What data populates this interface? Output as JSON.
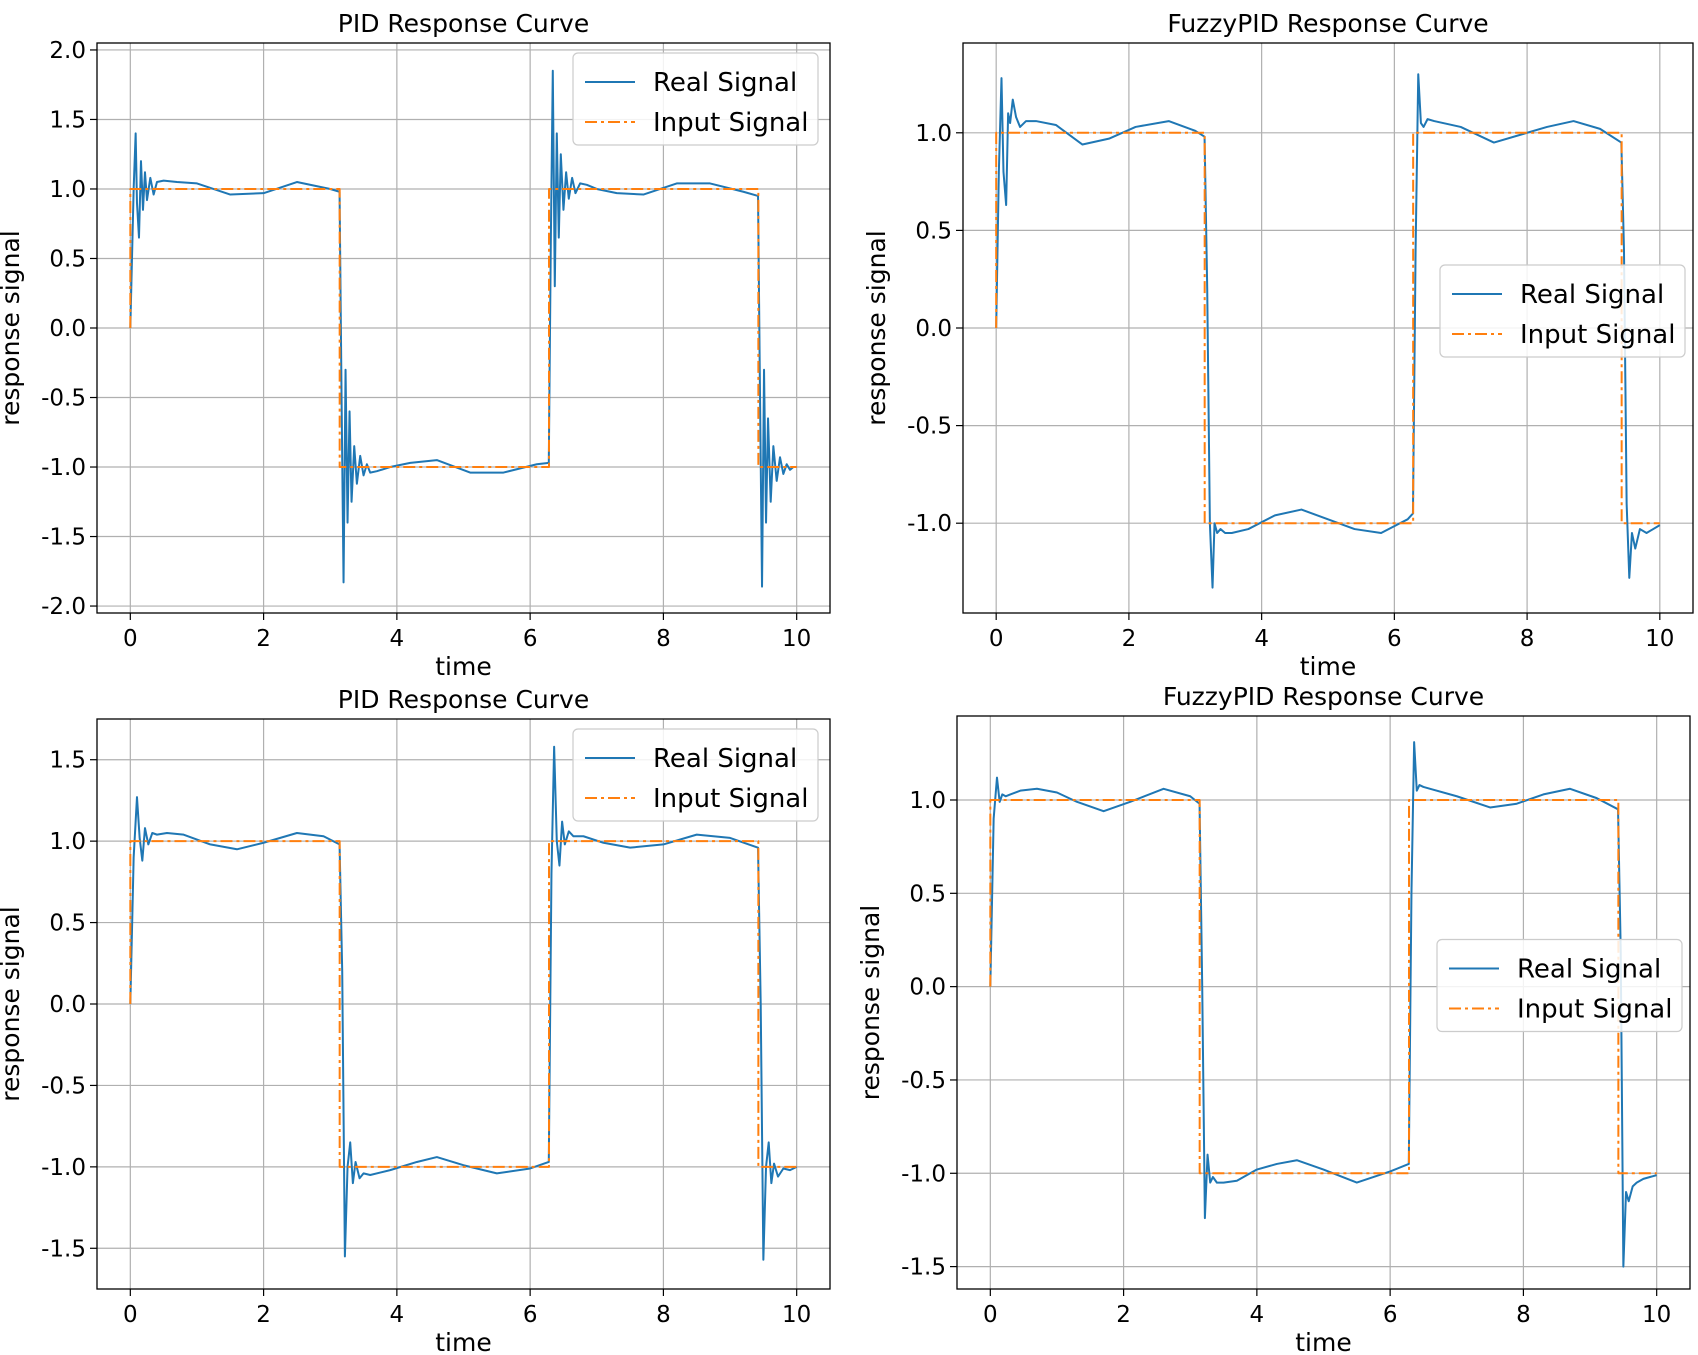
{
  "figure": {
    "background": "#ffffff",
    "grid_color": "#b0b0b0"
  },
  "colors": {
    "real": "#1f77b4",
    "input": "#ff7f0e",
    "axes": "#000000"
  },
  "chart_data": [
    {
      "type": "line",
      "title": "PID Response Curve",
      "xlabel": "time",
      "ylabel": "response signal",
      "xlim": [
        -0.5,
        10.5
      ],
      "ylim": [
        -2.05,
        2.05
      ],
      "xticks": [
        0,
        2,
        4,
        6,
        8,
        10
      ],
      "xtick_labels": [
        "0",
        "2",
        "4",
        "6",
        "8",
        "10"
      ],
      "yticks": [
        2.0,
        1.5,
        1.0,
        0.5,
        0.0,
        -0.5,
        -1.0,
        -1.5,
        -2.0
      ],
      "ytick_labels": [
        "2.0",
        "1.5",
        "1.0",
        "0.5",
        "0.0",
        "-0.5",
        "-1.0",
        "-1.5",
        "-2.0"
      ],
      "grid": true,
      "legend_position": "top-right",
      "legend": [
        "Real Signal",
        "Input Signal"
      ],
      "series": [
        {
          "name": "Real Signal",
          "style": "solid",
          "x": [
            0,
            0.05,
            0.08,
            0.1,
            0.13,
            0.16,
            0.19,
            0.22,
            0.25,
            0.3,
            0.35,
            0.4,
            0.5,
            0.7,
            1.0,
            1.5,
            2.0,
            2.5,
            3.0,
            3.14,
            3.17,
            3.2,
            3.23,
            3.26,
            3.29,
            3.32,
            3.36,
            3.4,
            3.45,
            3.5,
            3.55,
            3.6,
            3.7,
            3.9,
            4.2,
            4.6,
            5.1,
            5.6,
            6.1,
            6.28,
            6.31,
            6.34,
            6.37,
            6.4,
            6.43,
            6.46,
            6.5,
            6.54,
            6.58,
            6.63,
            6.68,
            6.75,
            6.85,
            7.0,
            7.3,
            7.7,
            8.2,
            8.7,
            9.2,
            9.42,
            9.45,
            9.48,
            9.51,
            9.54,
            9.57,
            9.61,
            9.65,
            9.7,
            9.75,
            9.8,
            9.85,
            9.9,
            9.95,
            10.0
          ],
          "y": [
            0.0,
            1.0,
            1.4,
            0.9,
            0.65,
            1.2,
            0.85,
            1.12,
            0.92,
            1.08,
            0.96,
            1.05,
            1.06,
            1.05,
            1.04,
            0.96,
            0.97,
            1.05,
            1.0,
            0.98,
            -0.5,
            -1.83,
            -0.3,
            -1.4,
            -0.6,
            -1.25,
            -0.85,
            -1.12,
            -0.92,
            -1.06,
            -0.98,
            -1.04,
            -1.03,
            -1.0,
            -0.97,
            -0.95,
            -1.04,
            -1.04,
            -0.98,
            -0.97,
            0.6,
            1.85,
            0.3,
            1.4,
            0.65,
            1.25,
            0.85,
            1.12,
            0.93,
            1.08,
            0.97,
            1.04,
            1.03,
            1.0,
            0.97,
            0.96,
            1.04,
            1.04,
            0.98,
            0.95,
            -0.5,
            -1.86,
            -0.3,
            -1.4,
            -0.65,
            -1.25,
            -0.85,
            -1.1,
            -0.93,
            -1.05,
            -0.98,
            -1.02,
            -1.0,
            -1.0
          ]
        },
        {
          "name": "Input Signal",
          "style": "dashdot",
          "x": [
            0,
            0.0001,
            3.1416,
            3.1417,
            6.2832,
            6.2833,
            9.4248,
            9.4249,
            10.0
          ],
          "y": [
            0,
            1,
            1,
            -1,
            -1,
            1,
            1,
            -1,
            -1
          ]
        }
      ]
    },
    {
      "type": "line",
      "title": "FuzzyPID Response Curve",
      "xlabel": "time",
      "ylabel": "response signal",
      "xlim": [
        -0.5,
        10.5
      ],
      "ylim": [
        -1.46,
        1.46
      ],
      "xticks": [
        0,
        2,
        4,
        6,
        8,
        10
      ],
      "xtick_labels": [
        "0",
        "2",
        "4",
        "6",
        "8",
        "10"
      ],
      "yticks": [
        1.0,
        0.5,
        0.0,
        -0.5,
        -1.0
      ],
      "ytick_labels": [
        "1.0",
        "0.5",
        "0.0",
        "-0.5",
        "-1.0"
      ],
      "grid": true,
      "legend_position": "center-right",
      "legend": [
        "Real Signal",
        "Input Signal"
      ],
      "series": [
        {
          "name": "Real Signal",
          "style": "solid",
          "x": [
            0,
            0.04,
            0.08,
            0.11,
            0.15,
            0.18,
            0.21,
            0.25,
            0.3,
            0.36,
            0.45,
            0.6,
            0.9,
            1.3,
            1.7,
            2.1,
            2.6,
            3.0,
            3.14,
            3.18,
            3.22,
            3.26,
            3.29,
            3.33,
            3.38,
            3.45,
            3.55,
            3.8,
            4.2,
            4.6,
            5.0,
            5.4,
            5.8,
            6.2,
            6.28,
            6.32,
            6.36,
            6.4,
            6.44,
            6.5,
            6.6,
            7.0,
            7.5,
            7.9,
            8.3,
            8.7,
            9.1,
            9.42,
            9.46,
            9.5,
            9.54,
            9.58,
            9.63,
            9.7,
            9.8,
            10.0
          ],
          "y": [
            0.0,
            0.8,
            1.28,
            0.8,
            0.63,
            1.1,
            1.05,
            1.17,
            1.08,
            1.03,
            1.06,
            1.06,
            1.04,
            0.94,
            0.97,
            1.03,
            1.06,
            1.01,
            0.98,
            0.2,
            -1.0,
            -1.33,
            -1.0,
            -1.05,
            -1.03,
            -1.05,
            -1.05,
            -1.03,
            -0.96,
            -0.93,
            -0.98,
            -1.03,
            -1.05,
            -0.98,
            -0.95,
            0.4,
            1.3,
            1.05,
            1.03,
            1.07,
            1.06,
            1.03,
            0.95,
            0.99,
            1.03,
            1.06,
            1.02,
            0.95,
            0.4,
            -0.9,
            -1.28,
            -1.05,
            -1.13,
            -1.03,
            -1.05,
            -1.01
          ]
        },
        {
          "name": "Input Signal",
          "style": "dashdot",
          "x": [
            0,
            0.0001,
            3.1416,
            3.1417,
            6.2832,
            6.2833,
            9.4248,
            9.4249,
            10.0
          ],
          "y": [
            0,
            1,
            1,
            -1,
            -1,
            1,
            1,
            -1,
            -1
          ]
        }
      ]
    },
    {
      "type": "line",
      "title": "PID Response Curve",
      "xlabel": "time",
      "ylabel": "response signal",
      "xlim": [
        -0.5,
        10.5
      ],
      "ylim": [
        -1.75,
        1.75
      ],
      "xticks": [
        0,
        2,
        4,
        6,
        8,
        10
      ],
      "xtick_labels": [
        "0",
        "2",
        "4",
        "6",
        "8",
        "10"
      ],
      "yticks": [
        1.5,
        1.0,
        0.5,
        0.0,
        -0.5,
        -1.0,
        -1.5
      ],
      "ytick_labels": [
        "1.5",
        "1.0",
        "0.5",
        "0.0",
        "-0.5",
        "-1.0",
        "-1.5"
      ],
      "grid": true,
      "legend_position": "top-right",
      "legend": [
        "Real Signal",
        "Input Signal"
      ],
      "series": [
        {
          "name": "Real Signal",
          "style": "solid",
          "x": [
            0,
            0.05,
            0.1,
            0.14,
            0.18,
            0.22,
            0.27,
            0.33,
            0.4,
            0.55,
            0.8,
            1.2,
            1.6,
            2.0,
            2.5,
            2.9,
            3.14,
            3.18,
            3.22,
            3.26,
            3.3,
            3.34,
            3.38,
            3.44,
            3.5,
            3.6,
            3.9,
            4.3,
            4.6,
            5.0,
            5.5,
            6.0,
            6.28,
            6.32,
            6.36,
            6.4,
            6.44,
            6.48,
            6.52,
            6.58,
            6.65,
            6.8,
            7.1,
            7.5,
            8.0,
            8.5,
            9.0,
            9.42,
            9.46,
            9.5,
            9.54,
            9.58,
            9.62,
            9.66,
            9.72,
            9.8,
            9.9,
            10.0
          ],
          "y": [
            0.0,
            0.9,
            1.27,
            1.02,
            0.88,
            1.08,
            0.98,
            1.05,
            1.04,
            1.05,
            1.04,
            0.98,
            0.95,
            0.99,
            1.05,
            1.03,
            0.98,
            0.2,
            -1.55,
            -1.0,
            -0.85,
            -1.1,
            -0.97,
            -1.07,
            -1.04,
            -1.05,
            -1.02,
            -0.97,
            -0.94,
            -0.99,
            -1.04,
            -1.01,
            -0.97,
            0.8,
            1.58,
            1.0,
            0.85,
            1.12,
            0.98,
            1.06,
            1.03,
            1.03,
            0.99,
            0.96,
            0.98,
            1.04,
            1.02,
            0.96,
            0.0,
            -1.57,
            -1.0,
            -0.85,
            -1.1,
            -0.98,
            -1.06,
            -1.01,
            -1.02,
            -1.0
          ]
        },
        {
          "name": "Input Signal",
          "style": "dashdot",
          "x": [
            0,
            0.0001,
            3.1416,
            3.1417,
            6.2832,
            6.2833,
            9.4248,
            9.4249,
            10.0
          ],
          "y": [
            0,
            1,
            1,
            -1,
            -1,
            1,
            1,
            -1,
            -1
          ]
        }
      ]
    },
    {
      "type": "line",
      "title": "FuzzyPID Response Curve",
      "xlabel": "time",
      "ylabel": "response signal",
      "xlim": [
        -0.5,
        10.5
      ],
      "ylim": [
        -1.62,
        1.45
      ],
      "xticks": [
        0,
        2,
        4,
        6,
        8,
        10
      ],
      "xtick_labels": [
        "0",
        "2",
        "4",
        "6",
        "8",
        "10"
      ],
      "yticks": [
        1.0,
        0.5,
        0.0,
        -0.5,
        -1.0,
        -1.5
      ],
      "ytick_labels": [
        "1.0",
        "0.5",
        "0.0",
        "-0.5",
        "-1.0",
        "-1.5"
      ],
      "grid": true,
      "legend_position": "center-right",
      "legend": [
        "Real Signal",
        "Input Signal"
      ],
      "series": [
        {
          "name": "Real Signal",
          "style": "solid",
          "x": [
            0,
            0.05,
            0.1,
            0.14,
            0.18,
            0.23,
            0.3,
            0.45,
            0.7,
            1.0,
            1.3,
            1.7,
            2.1,
            2.6,
            3.0,
            3.14,
            3.18,
            3.22,
            3.26,
            3.3,
            3.34,
            3.4,
            3.5,
            3.7,
            4.0,
            4.3,
            4.6,
            5.0,
            5.5,
            6.0,
            6.28,
            6.32,
            6.36,
            6.4,
            6.44,
            6.5,
            6.6,
            7.0,
            7.5,
            7.9,
            8.3,
            8.7,
            9.1,
            9.42,
            9.46,
            9.5,
            9.54,
            9.58,
            9.64,
            9.7,
            9.8,
            10.0
          ],
          "y": [
            0.0,
            0.9,
            1.12,
            0.99,
            1.03,
            1.02,
            1.03,
            1.05,
            1.06,
            1.04,
            0.99,
            0.94,
            0.99,
            1.06,
            1.02,
            0.98,
            0.0,
            -1.24,
            -0.9,
            -1.05,
            -1.02,
            -1.05,
            -1.05,
            -1.04,
            -0.98,
            -0.95,
            -0.93,
            -0.98,
            -1.05,
            -0.99,
            -0.95,
            0.5,
            1.31,
            1.05,
            1.08,
            1.07,
            1.06,
            1.02,
            0.96,
            0.98,
            1.03,
            1.06,
            1.01,
            0.95,
            0.2,
            -1.5,
            -1.1,
            -1.15,
            -1.07,
            -1.05,
            -1.03,
            -1.01
          ]
        },
        {
          "name": "Input Signal",
          "style": "dashdot",
          "x": [
            0,
            0.0001,
            3.1416,
            3.1417,
            6.2832,
            6.2833,
            9.4248,
            9.4249,
            10.0
          ],
          "y": [
            0,
            1,
            1,
            -1,
            -1,
            1,
            1,
            -1,
            -1
          ]
        }
      ]
    }
  ]
}
